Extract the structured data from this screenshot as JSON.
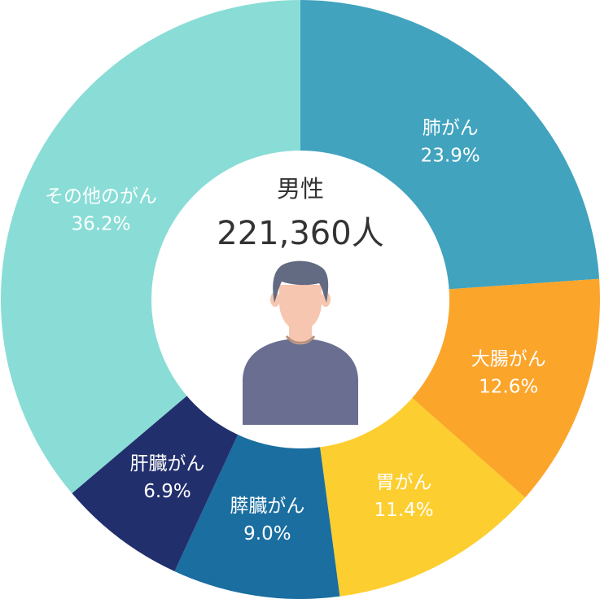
{
  "chart_data": {
    "type": "pie",
    "center_title": "男性",
    "center_value": "221,360人",
    "center_icon": "male-person-icon",
    "categories": [
      "肺がん",
      "大腸がん",
      "胃がん",
      "膵臓がん",
      "肝臓がん",
      "その他のがん"
    ],
    "values": [
      23.9,
      12.6,
      11.4,
      9.0,
      6.9,
      36.2
    ],
    "value_labels": [
      "23.9%",
      "12.6%",
      "11.4%",
      "9.0%",
      "6.9%",
      "36.2%"
    ],
    "colors": [
      "#41A3BE",
      "#FBA52B",
      "#FDCE2F",
      "#1A6EA0",
      "#222F6D",
      "#89DDD6"
    ],
    "style": "donut"
  },
  "icon_colors": {
    "hair": "#636B82",
    "skin": "#F7C6B0",
    "neck_shadow": "#E2AC96",
    "shirt": "#6A6E90",
    "collar": "#B7917F"
  }
}
